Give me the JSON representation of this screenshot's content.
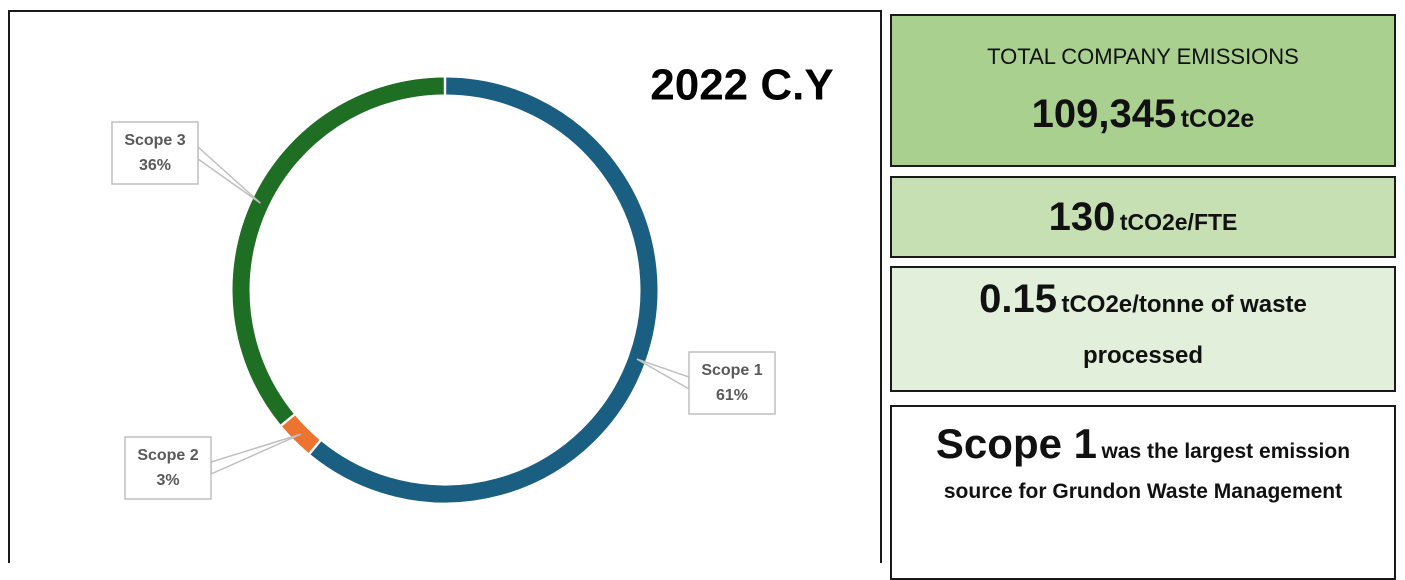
{
  "chart_data": {
    "type": "donut",
    "title": "2022 C.Y",
    "categories": [
      "Scope 1",
      "Scope 2",
      "Scope 3"
    ],
    "values": [
      61,
      3,
      36
    ],
    "value_labels": [
      "61%",
      "3%",
      "36%"
    ],
    "colors": [
      "#1a5e82",
      "#ed7331",
      "#1e6e23"
    ]
  },
  "panels": [
    {
      "heading": "TOTAL COMPANY EMISSIONS",
      "value": "109,345",
      "unit": "tCO2e"
    },
    {
      "value": "130",
      "unit": "tCO2e/FTE"
    },
    {
      "value": "0.15",
      "unit": "tCO2e/tonne of waste processed"
    },
    {
      "value": "Scope 1",
      "unit": "was the largest emission source for Grundon Waste Management"
    }
  ]
}
